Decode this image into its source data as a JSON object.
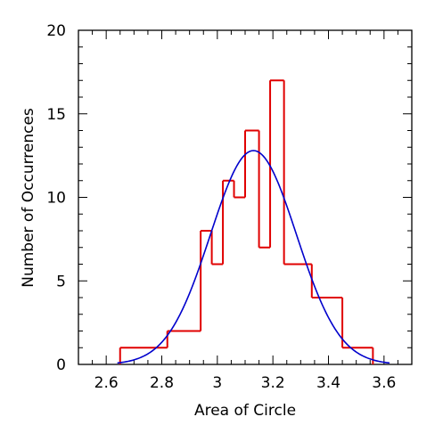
{
  "chart_data": {
    "type": "histogram",
    "title": "",
    "xlabel": "Area of Circle",
    "ylabel": "Number of Occurrences",
    "xlim": [
      2.5,
      3.7
    ],
    "ylim": [
      0,
      20
    ],
    "x_ticks": [
      2.6,
      2.8,
      3.0,
      3.2,
      3.4,
      3.6
    ],
    "x_tick_labels": [
      "2.6",
      "2.8",
      "3",
      "3.2",
      "3.4",
      "3.6"
    ],
    "y_ticks": [
      0,
      5,
      10,
      15,
      20
    ],
    "y_tick_labels": [
      "0",
      "5",
      "10",
      "15",
      "20"
    ],
    "grid": false,
    "legend": "none",
    "series": [
      {
        "kind": "step-histogram",
        "color": "#e00000",
        "bins": [
          {
            "x0": 2.65,
            "x1": 2.82,
            "count": 1
          },
          {
            "x0": 2.82,
            "x1": 2.94,
            "count": 2
          },
          {
            "x0": 2.94,
            "x1": 2.98,
            "count": 8
          },
          {
            "x0": 2.98,
            "x1": 3.02,
            "count": 6
          },
          {
            "x0": 3.02,
            "x1": 3.06,
            "count": 11
          },
          {
            "x0": 3.06,
            "x1": 3.1,
            "count": 10
          },
          {
            "x0": 3.1,
            "x1": 3.15,
            "count": 14
          },
          {
            "x0": 3.15,
            "x1": 3.19,
            "count": 7
          },
          {
            "x0": 3.19,
            "x1": 3.24,
            "count": 17
          },
          {
            "x0": 3.24,
            "x1": 3.34,
            "count": 6
          },
          {
            "x0": 3.34,
            "x1": 3.45,
            "count": 4
          },
          {
            "x0": 3.45,
            "x1": 3.56,
            "count": 1
          }
        ]
      },
      {
        "kind": "gaussian-fit",
        "color": "#0000cc",
        "amplitude": 12.8,
        "mean": 3.13,
        "sigma": 0.155,
        "x_range": [
          2.64,
          3.62
        ]
      }
    ]
  }
}
